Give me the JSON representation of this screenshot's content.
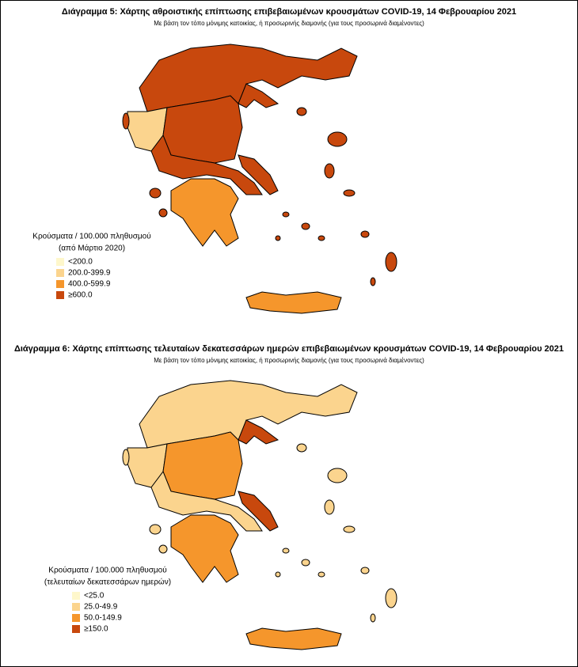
{
  "maps": [
    {
      "title": "Διάγραμμα 5: Χάρτης αθροιστικής επίπτωσης επιβεβαιωμένων κρουσμάτων COVID-19, 14 Φεβρουαρίου 2021",
      "subtitle": "Με βάση τον τόπο μόνιμης κατοικίας, ή προσωρινής διαμονής (για τους προσωρινά διαμένοντες)",
      "legend": {
        "title": [
          "Κρούσματα / 100.000 πληθυσμού",
          "(από Μάρτιο 2020)"
        ],
        "items": [
          {
            "label": "<200.0",
            "color": "#fef7cb"
          },
          {
            "label": "200.0-399.9",
            "color": "#fbd48e"
          },
          {
            "label": "400.0-599.9",
            "color": "#f5962c"
          },
          {
            "label": "≥600.0",
            "color": "#c8480d"
          }
        ]
      }
    },
    {
      "title": "Διάγραμμα 6: Χάρτης επίπτωσης τελευταίων δεκατεσσάρων ημερών επιβεβαιωμένων κρουσμάτων COVID-19, 14 Φεβρουαρίου 2021",
      "subtitle": "Με βάση τον τόπο μόνιμης κατοικίας, ή προσωρινής διαμονής (για τους προσωρινά διαμένοντες)",
      "legend": {
        "title": [
          "Κρούσματα / 100.000 πληθυσμού",
          "(τελευταίων δεκατεσσάρων ημερών)"
        ],
        "items": [
          {
            "label": "<25.0",
            "color": "#fef7cb"
          },
          {
            "label": "25.0-49.9",
            "color": "#fbd48e"
          },
          {
            "label": "50.0-149.9",
            "color": "#f5962c"
          },
          {
            "label": "≥150.0",
            "color": "#c8480d"
          }
        ]
      }
    }
  ]
}
